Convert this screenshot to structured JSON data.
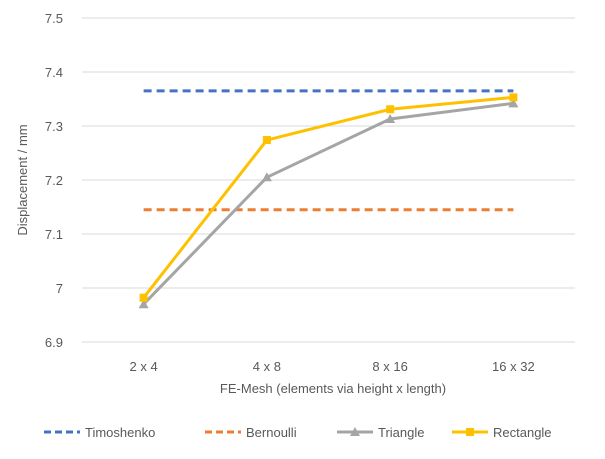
{
  "chart_data": {
    "type": "line",
    "title": "",
    "xlabel": "FE-Mesh (elements via height x length)",
    "ylabel": "Displacement / mm",
    "categories": [
      "2 x 4",
      "4 x 8",
      "8 x 16",
      "16 x 32"
    ],
    "ylim": [
      6.9,
      7.5
    ],
    "yticks": [
      {
        "value": 6.9,
        "label": "6.9"
      },
      {
        "value": 7.0,
        "label": "7"
      },
      {
        "value": 7.1,
        "label": "7.1"
      },
      {
        "value": 7.2,
        "label": "7.2"
      },
      {
        "value": 7.3,
        "label": "7.3"
      },
      {
        "value": 7.4,
        "label": "7.4"
      },
      {
        "value": 7.5,
        "label": "7.5"
      }
    ],
    "grid": true,
    "legend_position": "bottom",
    "series": [
      {
        "name": "Timoshenko",
        "values": [
          7.365,
          7.365,
          7.365,
          7.365
        ],
        "color": "#4472C4",
        "dash": true,
        "marker": "none"
      },
      {
        "name": "Bernoulli",
        "values": [
          7.145,
          7.145,
          7.145,
          7.145
        ],
        "color": "#ED7D31",
        "dash": true,
        "marker": "none"
      },
      {
        "name": "Triangle",
        "values": [
          6.97,
          7.205,
          7.313,
          7.342
        ],
        "color": "#A5A5A5",
        "dash": false,
        "marker": "triangle"
      },
      {
        "name": "Rectangle",
        "values": [
          6.982,
          7.274,
          7.331,
          7.353
        ],
        "color": "#FFC000",
        "dash": false,
        "marker": "square"
      }
    ]
  }
}
